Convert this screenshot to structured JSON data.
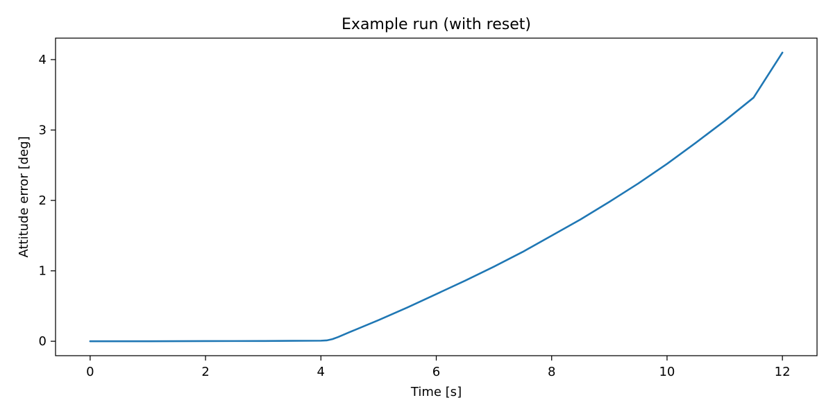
{
  "chart_data": {
    "type": "line",
    "title": "Example run (with reset)",
    "xlabel": "Time [s]",
    "ylabel": "Attitude error [deg]",
    "xlim": [
      -0.6,
      12.6
    ],
    "ylim": [
      -0.205,
      4.305
    ],
    "xticks": [
      0,
      2,
      4,
      6,
      8,
      10,
      12
    ],
    "yticks": [
      0,
      1,
      2,
      3,
      4
    ],
    "grid": false,
    "series": [
      {
        "color": "#1f77b4",
        "x": [
          0,
          0.5,
          1,
          1.5,
          2,
          2.5,
          3,
          3.5,
          4,
          4.1,
          4.2,
          4.3,
          4.5,
          5,
          5.5,
          6,
          6.5,
          7,
          7.5,
          8,
          8.5,
          9,
          9.5,
          10,
          10.5,
          11,
          11.5,
          12
        ],
        "y": [
          0.0,
          0.0,
          0.0,
          0.001,
          0.002,
          0.003,
          0.004,
          0.006,
          0.008,
          0.012,
          0.03,
          0.06,
          0.13,
          0.3,
          0.48,
          0.67,
          0.86,
          1.06,
          1.27,
          1.5,
          1.73,
          1.98,
          2.24,
          2.52,
          2.82,
          3.13,
          3.46,
          4.1
        ]
      }
    ]
  }
}
